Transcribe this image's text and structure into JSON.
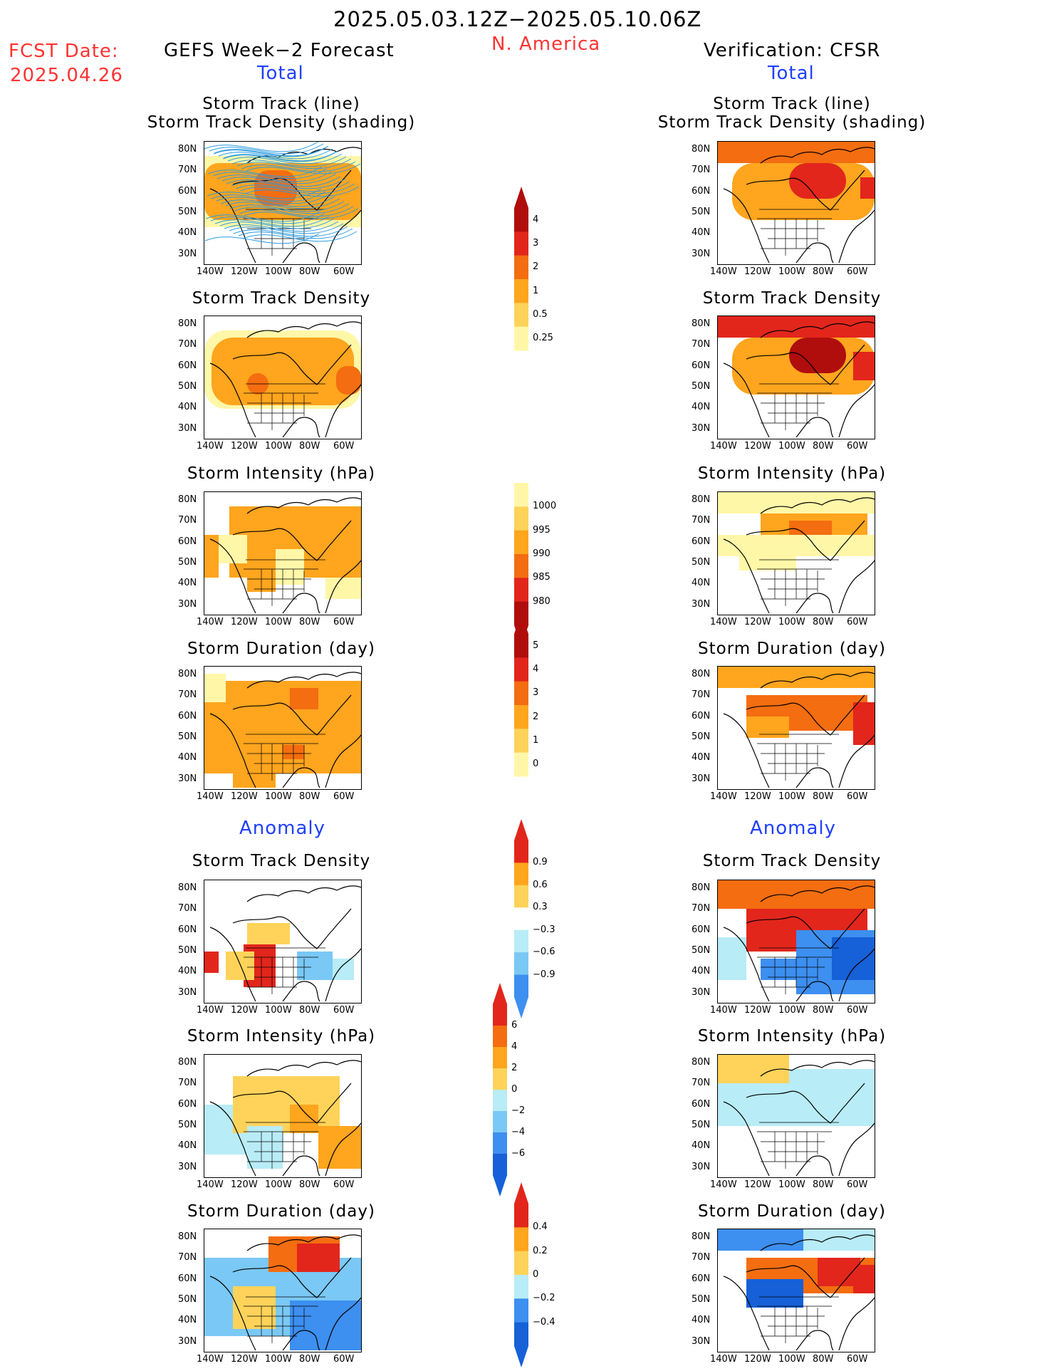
{
  "header": {
    "date_range": "2025.05.03.12Z−2025.05.10.06Z",
    "region": "N. America",
    "fcst_label": "FCST Date:",
    "fcst_date": "2025.04.26",
    "left_title": "GEFS Week−2 Forecast",
    "right_title": "Verification: CFSR",
    "total_left": "Total",
    "total_right": "Total",
    "anomaly_left": "Anomaly",
    "anomaly_right": "Anomaly"
  },
  "axes": {
    "lat_labels": [
      "80N",
      "70N",
      "60N",
      "50N",
      "40N",
      "30N"
    ],
    "lon_labels": [
      "140W",
      "120W",
      "100W",
      "80W",
      "60W"
    ]
  },
  "panels": {
    "track_line_1": "Storm Track (line)",
    "track_line_2": "Storm Track Density (shading)",
    "density": "Storm Track Density",
    "intensity": "Storm Intensity (hPa)",
    "duration": "Storm Duration (day)"
  },
  "colorbars": {
    "density": [
      "4",
      "3",
      "2",
      "1",
      "0.5",
      "0.25"
    ],
    "intensity": [
      "1000",
      "995",
      "990",
      "985",
      "980"
    ],
    "duration": [
      "5",
      "4",
      "3",
      "2",
      "1",
      "0"
    ],
    "anom_density": [
      "0.9",
      "0.6",
      "0.3",
      "−0.3",
      "−0.6",
      "−0.9"
    ],
    "anom_intensity": [
      "6",
      "4",
      "2",
      "0",
      "−2",
      "−4",
      "−6"
    ],
    "anom_duration": [
      "0.4",
      "0.2",
      "0",
      "−0.2",
      "−0.4"
    ]
  },
  "colors": {
    "yellow_light": "#fff7a8",
    "yellow": "#ffd35a",
    "orange": "#ffa51e",
    "orange_dark": "#f46d10",
    "red": "#e2261c",
    "red_dark": "#b00d0d",
    "blue_light": "#b8ecf6",
    "blue_mid": "#7ac8f5",
    "blue": "#3d8ff0",
    "blue_dark": "#1660d8",
    "track_line": "#2b9be0"
  }
}
